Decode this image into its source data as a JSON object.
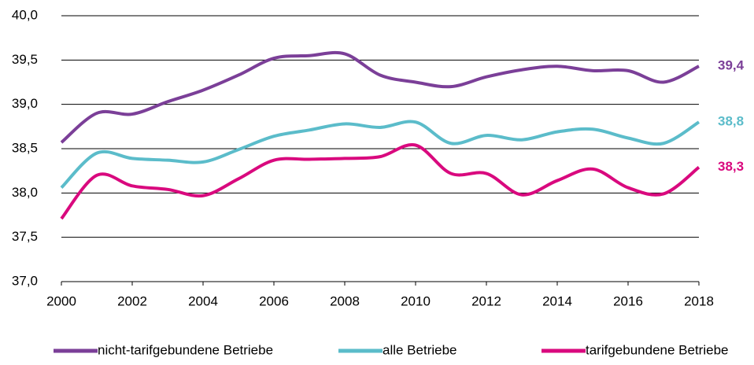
{
  "chart_data": {
    "type": "line",
    "x": [
      2000,
      2001,
      2002,
      2003,
      2004,
      2005,
      2006,
      2007,
      2008,
      2009,
      2010,
      2011,
      2012,
      2013,
      2014,
      2015,
      2016,
      2017,
      2018
    ],
    "series": [
      {
        "name": "nicht-tarifgebundene Betriebe",
        "color": "#7b3f98",
        "values": [
          38.57,
          38.9,
          38.89,
          39.03,
          39.16,
          39.33,
          39.52,
          39.55,
          39.57,
          39.33,
          39.25,
          39.2,
          39.31,
          39.39,
          39.43,
          39.38,
          39.38,
          39.25,
          39.43
        ],
        "value_labels": [
          null,
          null,
          null,
          null,
          null,
          null,
          null,
          null,
          null,
          null,
          null,
          null,
          null,
          null,
          null,
          null,
          null,
          null,
          "39,4"
        ]
      },
      {
        "name": "alle Betriebe",
        "color": "#5bbcca",
        "values": [
          38.06,
          38.45,
          38.39,
          38.37,
          38.35,
          38.49,
          38.64,
          38.71,
          38.78,
          38.74,
          38.8,
          38.56,
          38.65,
          38.6,
          38.69,
          38.72,
          38.62,
          38.56,
          38.8
        ],
        "value_labels": [
          null,
          null,
          null,
          null,
          null,
          null,
          null,
          null,
          null,
          null,
          null,
          null,
          null,
          null,
          null,
          null,
          null,
          null,
          "38,8"
        ]
      },
      {
        "name": "tarifgebundene Betriebe",
        "color": "#d9097e",
        "values": [
          37.71,
          38.2,
          38.08,
          38.04,
          37.97,
          38.16,
          38.37,
          38.38,
          38.39,
          38.41,
          38.54,
          38.22,
          38.22,
          37.98,
          38.14,
          38.27,
          38.06,
          37.99,
          38.29
        ],
        "value_labels": [
          null,
          null,
          null,
          null,
          null,
          null,
          null,
          null,
          null,
          null,
          null,
          null,
          null,
          null,
          null,
          null,
          null,
          null,
          "38,3"
        ]
      }
    ],
    "xlim": [
      2000,
      2018
    ],
    "xticks": [
      2000,
      2002,
      2004,
      2006,
      2008,
      2010,
      2012,
      2014,
      2016,
      2018
    ],
    "ylim": [
      37,
      40
    ],
    "yticks": [
      {
        "value": 37,
        "label": "37,0"
      },
      {
        "value": 37.5,
        "label": "37,5"
      },
      {
        "value": 38,
        "label": "38,0"
      },
      {
        "value": 38.5,
        "label": "38,5"
      },
      {
        "value": 39,
        "label": "39,0"
      },
      {
        "value": 39.5,
        "label": "39,5"
      },
      {
        "value": 40,
        "label": "40,0"
      }
    ],
    "grid": true,
    "legend": "bottom"
  }
}
